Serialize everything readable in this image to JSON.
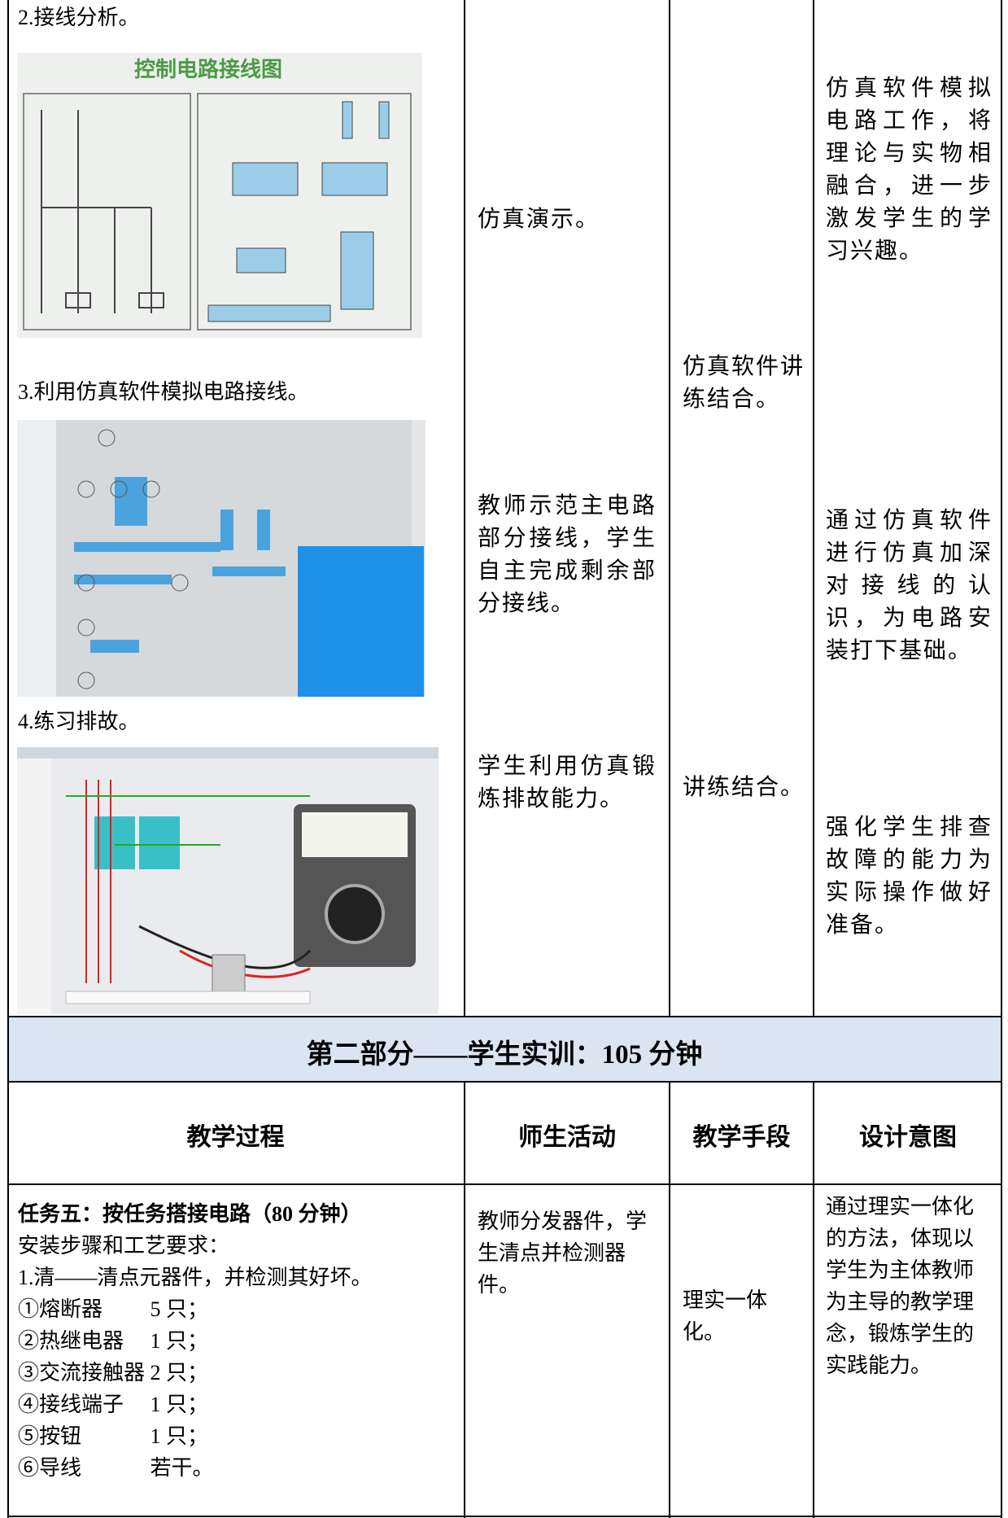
{
  "section1": {
    "steps": [
      "2.接线分析。",
      "3.利用仿真软件模拟电路接线。",
      "4.练习排故。"
    ],
    "diagram_title": "控制电路接线图",
    "activities": [
      "仿真演示。",
      "教师示范主电路部分接线，学生自主完成剩余部分接线。",
      "学生利用仿真锻炼排故能力。"
    ],
    "means": [
      "仿真软件讲练结合。",
      "讲练结合。"
    ],
    "intents": [
      "仿真软件模拟电路工作，将理论与实物相融合，进一步激发学生的学习兴趣。",
      "通过仿真软件进行仿真加深对接线的认识，为电路安装打下基础。",
      "强化学生排查故障的能力为实际操作做好准备。"
    ]
  },
  "section2": {
    "title": "第二部分——学生实训：105 分钟",
    "headers": [
      "教学过程",
      "师生活动",
      "教学手段",
      "设计意图"
    ],
    "process_title": "任务五：按任务搭接电路（80 分钟）",
    "process_lines": [
      "安装步骤和工艺要求：",
      "1.清——清点元器件，并检测其好坏。",
      "①熔断器　　 5 只；",
      "②热继电器　 1 只；",
      "③交流接触器 2 只；",
      "④接线端子　 1 只；",
      "⑤按钮　　　 1 只；",
      "⑥导线　　　 若干。"
    ],
    "activity": "教师分发器件，学生清点并检测器件。",
    "means": "理实一体化。",
    "intent": "通过理实一体化的方法，体现以学生为主体教师为主导的教学理念，锻炼学生的实践能力。"
  }
}
